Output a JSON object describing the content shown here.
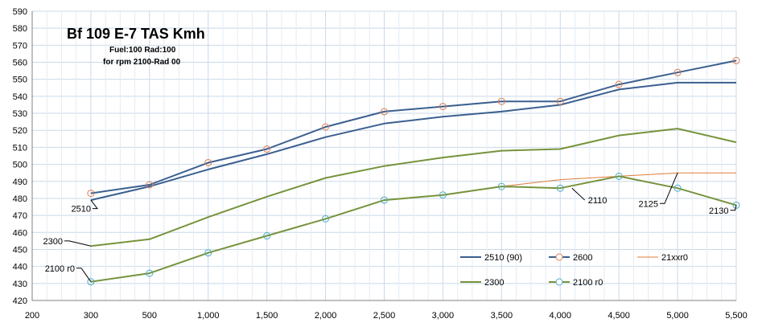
{
  "chart_data": {
    "type": "line",
    "title": "Bf 109 E-7 TAS Kmh",
    "subtitle_lines": [
      "Fuel:100 Rad:100",
      "for rpm 2100-Rad 00"
    ],
    "xlabel": "",
    "ylabel": "",
    "xlim": [
      200,
      5500
    ],
    "ylim": [
      420,
      590
    ],
    "x_ticks": [
      200,
      300,
      500,
      1000,
      1500,
      2000,
      2500,
      3000,
      3500,
      4000,
      4500,
      5000,
      5500
    ],
    "x_tick_labels": [
      "200",
      "300",
      "500",
      "1,000",
      "1,500",
      "2,000",
      "2,500",
      "3,000",
      "3,500",
      "4,000",
      "4,500",
      "5,000",
      "5,500"
    ],
    "y_ticks": [
      420,
      430,
      440,
      450,
      460,
      470,
      480,
      490,
      500,
      510,
      520,
      530,
      540,
      550,
      560,
      570,
      580,
      590
    ],
    "x": [
      300,
      500,
      1000,
      1500,
      2000,
      2500,
      3000,
      3500,
      4000,
      4500,
      5000,
      5500
    ],
    "grid": true,
    "legend_position": "bottom-right",
    "series": [
      {
        "name": "2510 (90)",
        "color": "#3b5f8f",
        "marker": "none",
        "width": 2,
        "values": [
          479,
          487,
          497,
          506,
          516,
          524,
          528,
          531,
          535,
          544,
          548,
          548
        ]
      },
      {
        "name": "2600",
        "color": "#3b5f8f",
        "marker": "circle",
        "marker_color": "#e07b4f",
        "width": 2,
        "values": [
          483,
          488,
          501,
          509,
          522,
          531,
          534,
          537,
          537,
          547,
          554,
          561
        ]
      },
      {
        "name": "21xxr0",
        "color": "#e07b39",
        "marker": "none",
        "width": 1,
        "x": [
          3500,
          4000,
          4500,
          5000,
          5500
        ],
        "values": [
          487,
          491,
          493,
          495,
          495
        ]
      },
      {
        "name": "2300",
        "color": "#77933c",
        "marker": "none",
        "width": 2,
        "values": [
          452,
          456,
          469,
          481,
          492,
          499,
          504,
          508,
          509,
          517,
          521,
          513
        ]
      },
      {
        "name": "2100 r0",
        "color": "#77933c",
        "marker": "circle",
        "marker_color": "#4bacc6",
        "width": 2,
        "values": [
          431,
          436,
          448,
          458,
          468,
          479,
          482,
          487,
          486,
          493,
          486,
          476
        ]
      }
    ],
    "annotations": [
      {
        "text": "2510",
        "x": 300,
        "y": 479,
        "label_x": 105,
        "label_y": 474
      },
      {
        "text": "2300",
        "x": 300,
        "y": 452,
        "label_x": 70,
        "label_y": 455
      },
      {
        "text": "2100 r0",
        "x": 300,
        "y": 431,
        "label_x": 85,
        "label_y": 439
      },
      {
        "text": "2110",
        "x": 4100,
        "y": 486,
        "label_x": 4250,
        "label_y": 479
      },
      {
        "text": "2125",
        "x": 5000,
        "y": 495,
        "label_x": 4780,
        "label_y": 477
      },
      {
        "text": "2130",
        "x": 5500,
        "y": 476,
        "label_x": 5380,
        "label_y": 473
      }
    ]
  }
}
